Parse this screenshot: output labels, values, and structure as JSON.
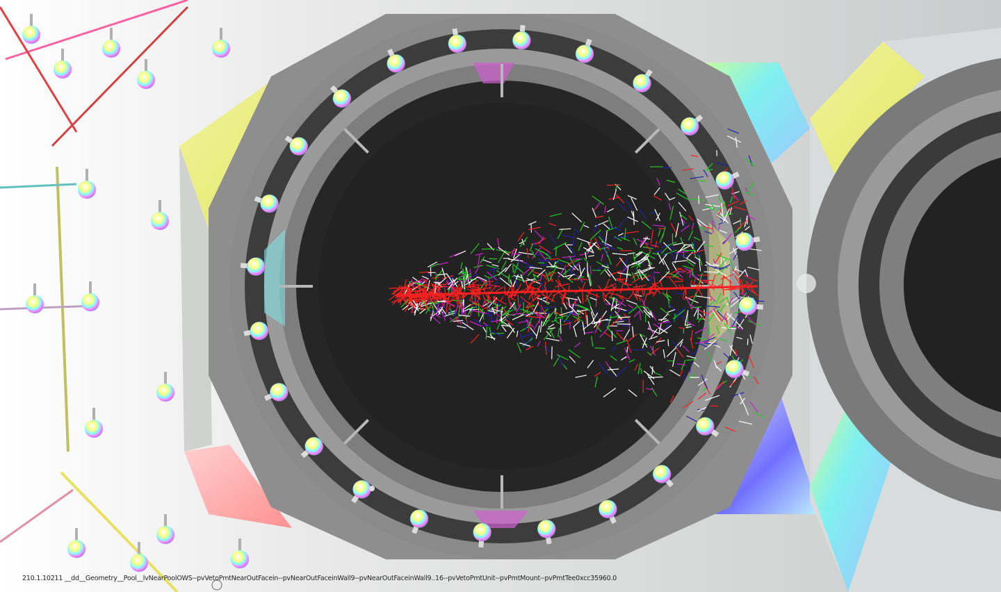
{
  "status_line": "210.1.10211 __dd__Geometry__Pool__lvNearPoolOWS--pvVetoPmtNearOutFacein--pvNearOutFaceinWall9--pvNearOutFaceinWall9..16--pvVetoPmtUnit--pvPmtMount--pvPmtTee0xcc35960.0",
  "colors": {
    "background": "#f4f5f4",
    "octagon_gray": "#8c8c8c",
    "ring_light": "#9b9b9b",
    "ring_dark": "#3a3a3a",
    "inner_disc": "#222222",
    "track_red": "#ff2020",
    "track_green": "#22cc22",
    "track_white": "#ffffff",
    "track_blue": "#2222aa",
    "track_magenta": "#cc22cc"
  },
  "icons": {
    "pmt": "pmt-sphere-icon"
  }
}
